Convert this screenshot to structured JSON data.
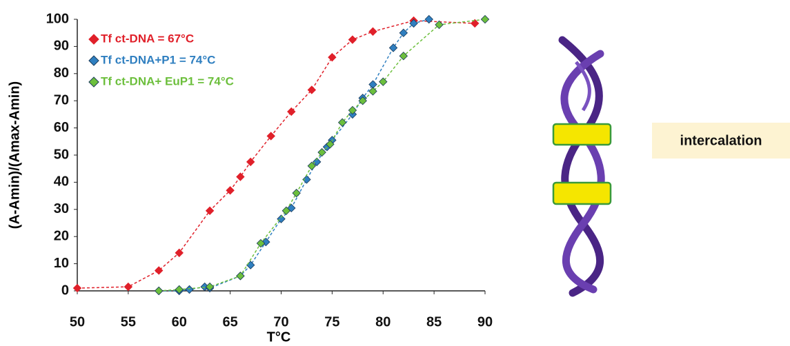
{
  "chart_data": {
    "type": "line",
    "xlabel": "T°C",
    "ylabel": "(A-Amin)/(Amax-Amin)",
    "xlim": [
      50,
      90
    ],
    "xticks": [
      50,
      55,
      60,
      65,
      70,
      75,
      80,
      85,
      90
    ],
    "ylim": [
      0,
      100
    ],
    "yticks": [
      0,
      10,
      20,
      30,
      40,
      50,
      60,
      70,
      80,
      90,
      100
    ],
    "legend": "upper left",
    "series": [
      {
        "name": "Tf ct-DNA = 67°C",
        "color": "#e0202a",
        "x": [
          50,
          55,
          58,
          60,
          63,
          65,
          66,
          67,
          69,
          71,
          73,
          75,
          77,
          79,
          83,
          89
        ],
        "values": [
          1,
          1.5,
          7.5,
          14,
          29.5,
          37,
          42,
          47.5,
          57,
          66,
          74,
          86,
          92.5,
          95.5,
          99.5,
          98.5
        ]
      },
      {
        "name": "Tf ct-DNA+P1 = 74°C",
        "color": "#2f7fc0",
        "x": [
          58,
          60,
          61,
          62.5,
          63,
          66,
          67,
          68.5,
          70,
          71,
          72.5,
          73.5,
          74.5,
          75,
          77,
          78,
          79,
          81,
          82,
          83,
          84.5
        ],
        "values": [
          0,
          0,
          0.5,
          1.5,
          1,
          5.5,
          9.5,
          18,
          26.5,
          30.5,
          41,
          47.5,
          53,
          55.5,
          65,
          71,
          76,
          89.5,
          95,
          98.5,
          100
        ]
      },
      {
        "name": "Tf ct-DNA+ EuP1 = 74°C",
        "color": "#6cbf3c",
        "x": [
          58,
          60,
          63,
          66,
          68,
          70.5,
          71.5,
          73,
          74,
          74.8,
          76,
          77,
          78,
          79,
          80,
          82,
          85.5,
          90
        ],
        "values": [
          0,
          0.5,
          1.5,
          5.5,
          17.5,
          29.5,
          36,
          46,
          51,
          54,
          62,
          66.5,
          70,
          73.5,
          77,
          86.5,
          98,
          100
        ]
      }
    ]
  },
  "diagram": {
    "label": "intercalation"
  }
}
